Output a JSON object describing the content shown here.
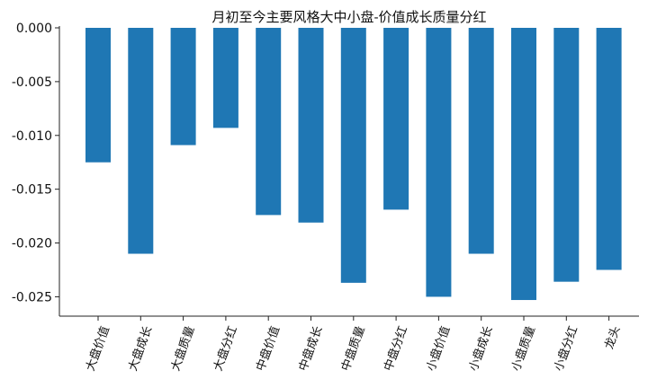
{
  "chart_data": {
    "type": "bar",
    "title": "月初至今主要风格大中小盘-价值成长质量分红",
    "xlabel": "",
    "ylabel": "",
    "categories": [
      "大盘价值",
      "大盘成长",
      "大盘质量",
      "大盘分红",
      "中盘价值",
      "中盘成长",
      "中盘质量",
      "中盘分红",
      "小盘价值",
      "小盘成长",
      "小盘质量",
      "小盘分红",
      "龙头"
    ],
    "values": [
      -0.0125,
      -0.021,
      -0.0109,
      -0.0093,
      -0.0174,
      -0.0181,
      -0.0237,
      -0.0169,
      -0.025,
      -0.021,
      -0.0253,
      -0.0236,
      -0.0225
    ],
    "yticks": [
      "0.000",
      "-0.005",
      "-0.010",
      "-0.015",
      "-0.020",
      "-0.025"
    ],
    "ytick_values": [
      0,
      -0.005,
      -0.01,
      -0.015,
      -0.02,
      -0.025
    ],
    "ylim": [
      -0.0268,
      0.0
    ],
    "bar_color": "#1f77b4",
    "grid": false
  }
}
